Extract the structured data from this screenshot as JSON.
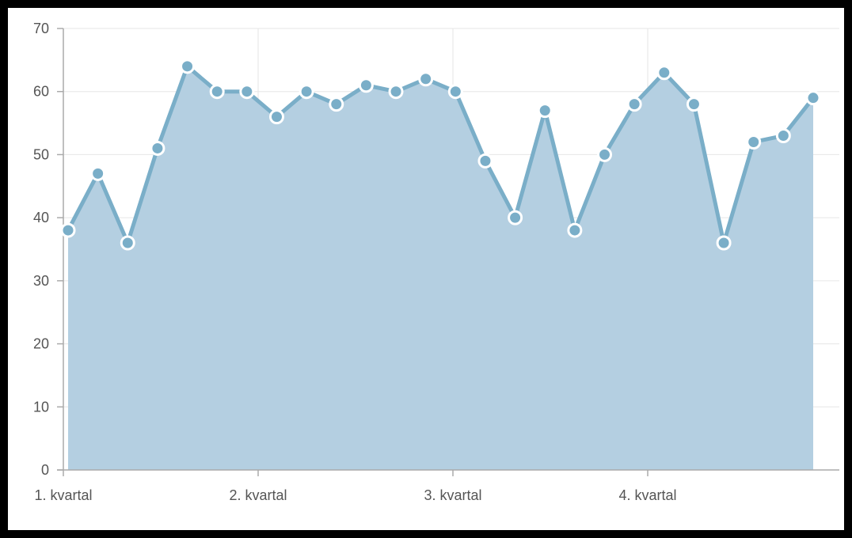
{
  "chart_data": {
    "type": "area",
    "title": "",
    "xlabel": "",
    "ylabel": "",
    "ylim": [
      0,
      70
    ],
    "yticks": [
      0,
      10,
      20,
      30,
      40,
      50,
      60,
      70
    ],
    "xtick_labels": [
      "1. kvartal",
      "2. kvartal",
      "3. kvartal",
      "4. kvartal"
    ],
    "grid": true,
    "legend": "none",
    "series": [
      {
        "values": [
          38,
          47,
          36,
          51,
          64,
          60,
          60,
          56,
          60,
          58,
          61,
          60,
          62,
          60,
          49,
          40,
          57,
          38,
          50,
          58,
          63,
          58,
          36,
          52,
          53,
          59
        ]
      }
    ],
    "colors": {
      "fill": "#b4cfe1",
      "line": "#7aaec8",
      "point": "#7aaec8",
      "point_stroke": "#ffffff",
      "grid": "#e6e6e6",
      "axis": "#aaaaaa"
    }
  }
}
